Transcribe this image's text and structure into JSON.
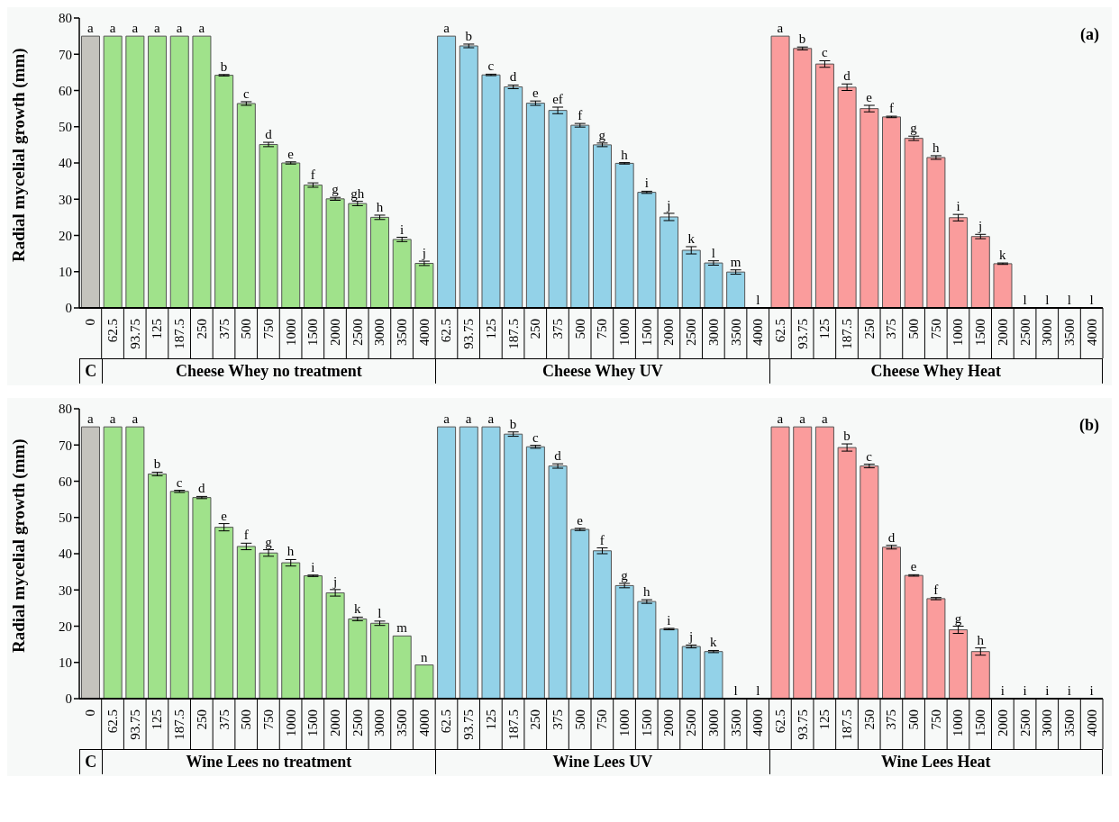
{
  "chart_data": [
    {
      "type": "bar",
      "ylabel": "Radial mycelial growth (mm)",
      "categories": [
        "0",
        "62.5",
        "93.75",
        "125",
        "187.5",
        "250",
        "375",
        "500",
        "750",
        "1000",
        "1500",
        "2000",
        "2500",
        "3000",
        "3500",
        "4000",
        "62.5",
        "93.75",
        "125",
        "187.5",
        "250",
        "375",
        "500",
        "750",
        "1000",
        "1500",
        "2000",
        "2500",
        "3000",
        "3500",
        "4000",
        "62.5",
        "93.75",
        "125",
        "187.5",
        "250",
        "375",
        "500",
        "750",
        "1000",
        "1500",
        "2000",
        "2500",
        "3000",
        "3500",
        "4000"
      ],
      "values": [
        75,
        75,
        75,
        75,
        75,
        75,
        64.2,
        56.4,
        45.1,
        40,
        33.9,
        30.1,
        28.8,
        25,
        18.9,
        12.3,
        75,
        72.3,
        64.3,
        61,
        56.5,
        54.5,
        50.4,
        45,
        39.9,
        31.9,
        25.1,
        15.9,
        12.4,
        9.9,
        0,
        75,
        71.6,
        67.3,
        60.9,
        55,
        52.7,
        46.8,
        41.5,
        24.9,
        19.7,
        12.2,
        0,
        0,
        0,
        0
      ],
      "errors": [
        null,
        null,
        null,
        null,
        null,
        null,
        0.2,
        0.5,
        0.6,
        0.3,
        0.6,
        0.4,
        0.6,
        0.6,
        0.6,
        0.6,
        null,
        0.5,
        0.2,
        0.5,
        0.6,
        0.9,
        0.5,
        0.5,
        0.2,
        0.3,
        1,
        1,
        0.6,
        0.6,
        null,
        null,
        0.4,
        0.9,
        0.9,
        0.9,
        0.2,
        0.6,
        0.5,
        0.9,
        0.6,
        0.2,
        null,
        null,
        null,
        null
      ],
      "value_labels": [
        "a",
        "a",
        "a",
        "a",
        "a",
        "a",
        "b",
        "c",
        "d",
        "e",
        "f",
        "g",
        "gh",
        "h",
        "i",
        "j",
        "a",
        "b",
        "c",
        "d",
        "e",
        "ef",
        "f",
        "g",
        "h",
        "i",
        "j",
        "k",
        "l",
        "m",
        "l",
        "a",
        "b",
        "c",
        "d",
        "e",
        "f",
        "g",
        "h",
        "i",
        "j",
        "k",
        "l",
        "l",
        "l",
        "l"
      ],
      "colors": [
        "#c4c3bd",
        "#a0e28b",
        "#a0e28b",
        "#a0e28b",
        "#a0e28b",
        "#a0e28b",
        "#a0e28b",
        "#a0e28b",
        "#a0e28b",
        "#a0e28b",
        "#a0e28b",
        "#a0e28b",
        "#a0e28b",
        "#a0e28b",
        "#a0e28b",
        "#a0e28b",
        "#93d2e8",
        "#93d2e8",
        "#93d2e8",
        "#93d2e8",
        "#93d2e8",
        "#93d2e8",
        "#93d2e8",
        "#93d2e8",
        "#93d2e8",
        "#93d2e8",
        "#93d2e8",
        "#93d2e8",
        "#93d2e8",
        "#93d2e8",
        "#93d2e8",
        "#fa9c9c",
        "#fa9c9c",
        "#fa9c9c",
        "#fa9c9c",
        "#fa9c9c",
        "#fa9c9c",
        "#fa9c9c",
        "#fa9c9c",
        "#fa9c9c",
        "#fa9c9c",
        "#fa9c9c",
        "#fa9c9c",
        "#fa9c9c",
        "#fa9c9c",
        "#fa9c9c"
      ],
      "ylim": [
        0,
        80
      ],
      "yticks": [
        0,
        10,
        20,
        30,
        40,
        50,
        60,
        70,
        80
      ],
      "grid": false,
      "legend": false,
      "annotations": [
        "(a)",
        "C",
        "Cheese Whey no treatment",
        "Cheese Whey UV",
        "Cheese Whey Heat"
      ]
    },
    {
      "type": "bar",
      "ylabel": "Radial mycelial growth (mm)",
      "categories": [
        "0",
        "62.5",
        "93.75",
        "125",
        "187.5",
        "250",
        "375",
        "500",
        "750",
        "1000",
        "1500",
        "2000",
        "2500",
        "3000",
        "3500",
        "4000",
        "62.5",
        "93.75",
        "125",
        "187.5",
        "250",
        "375",
        "500",
        "750",
        "1000",
        "1500",
        "2000",
        "2500",
        "3000",
        "3500",
        "4000",
        "62.5",
        "93.75",
        "125",
        "187.5",
        "250",
        "375",
        "500",
        "750",
        "1000",
        "1500",
        "2000",
        "2500",
        "3000",
        "3500",
        "4000"
      ],
      "values": [
        75,
        75,
        75,
        62,
        57.2,
        55.5,
        47.3,
        42,
        40.2,
        37.5,
        33.9,
        29.2,
        22,
        20.8,
        17.3,
        9.3,
        75,
        75,
        75,
        73,
        69.5,
        64.2,
        46.7,
        40.8,
        31.2,
        26.8,
        19.2,
        14.4,
        13,
        0,
        0,
        75,
        75,
        75,
        69.3,
        64.2,
        41.8,
        34,
        27.6,
        19,
        13,
        0,
        0,
        0,
        0,
        0
      ],
      "errors": [
        null,
        null,
        null,
        0.5,
        0.3,
        0.3,
        1,
        0.9,
        0.9,
        0.9,
        0.2,
        0.9,
        0.5,
        0.6,
        null,
        null,
        null,
        null,
        null,
        0.6,
        0.4,
        0.6,
        0.3,
        0.8,
        0.6,
        0.5,
        0.2,
        0.4,
        0.3,
        null,
        null,
        null,
        null,
        null,
        1,
        0.5,
        0.5,
        0.2,
        0.3,
        1,
        1,
        null,
        null,
        null,
        null,
        null
      ],
      "value_labels": [
        "a",
        "a",
        "a",
        "b",
        "c",
        "d",
        "e",
        "f",
        "g",
        "h",
        "i",
        "j",
        "k",
        "l",
        "m",
        "n",
        "a",
        "a",
        "a",
        "b",
        "c",
        "d",
        "e",
        "f",
        "g",
        "h",
        "i",
        "j",
        "k",
        "l",
        "l",
        "a",
        "a",
        "a",
        "b",
        "c",
        "d",
        "e",
        "f",
        "g",
        "h",
        "i",
        "i",
        "i",
        "i",
        "i"
      ],
      "colors": [
        "#c4c3bd",
        "#a0e28b",
        "#a0e28b",
        "#a0e28b",
        "#a0e28b",
        "#a0e28b",
        "#a0e28b",
        "#a0e28b",
        "#a0e28b",
        "#a0e28b",
        "#a0e28b",
        "#a0e28b",
        "#a0e28b",
        "#a0e28b",
        "#a0e28b",
        "#a0e28b",
        "#93d2e8",
        "#93d2e8",
        "#93d2e8",
        "#93d2e8",
        "#93d2e8",
        "#93d2e8",
        "#93d2e8",
        "#93d2e8",
        "#93d2e8",
        "#93d2e8",
        "#93d2e8",
        "#93d2e8",
        "#93d2e8",
        "#93d2e8",
        "#93d2e8",
        "#fa9c9c",
        "#fa9c9c",
        "#fa9c9c",
        "#fa9c9c",
        "#fa9c9c",
        "#fa9c9c",
        "#fa9c9c",
        "#fa9c9c",
        "#fa9c9c",
        "#fa9c9c",
        "#fa9c9c",
        "#fa9c9c",
        "#fa9c9c",
        "#fa9c9c",
        "#fa9c9c"
      ],
      "ylim": [
        0,
        80
      ],
      "yticks": [
        0,
        10,
        20,
        30,
        40,
        50,
        60,
        70,
        80
      ],
      "grid": false,
      "legend": false,
      "annotations": [
        "(b)",
        "C",
        "Wine Lees no treatment",
        "Wine Lees UV",
        "Wine Lees Heat"
      ]
    }
  ]
}
